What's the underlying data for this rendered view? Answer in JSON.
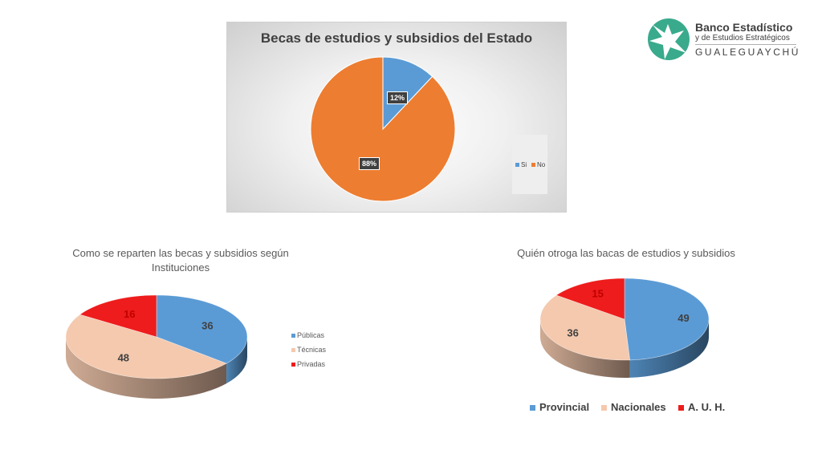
{
  "chart_data": [
    {
      "type": "pie",
      "title": "Becas de estudios y subsidios del Estado",
      "categories": [
        "Si",
        "No"
      ],
      "values": [
        12,
        88
      ],
      "labels": [
        "12%",
        "88%"
      ],
      "colors": [
        "#5b9bd5",
        "#ed7d31"
      ],
      "legend": "right"
    },
    {
      "type": "pie",
      "title": "Como se reparten las becas y subsidios según Instituciones",
      "categories": [
        "Públicas",
        "Técnicas",
        "Privadas"
      ],
      "values": [
        36,
        48,
        16
      ],
      "labels": [
        "36",
        "48",
        "16"
      ],
      "colors": [
        "#5b9bd5",
        "#f4c9ae",
        "#ee1c1c"
      ],
      "legend": "right"
    },
    {
      "type": "pie",
      "title": "Quién otroga las bacas de estudios y subsidios",
      "categories": [
        "Provincial",
        "Nacionales",
        "A. U. H."
      ],
      "values": [
        49,
        36,
        15
      ],
      "labels": [
        "49",
        "36",
        "15"
      ],
      "colors": [
        "#5b9bd5",
        "#f4c9ae",
        "#ee1c1c"
      ],
      "legend": "bottom"
    }
  ],
  "logo": {
    "line1": "Banco Estadístico",
    "line2": "y de Estudios Estratégicos",
    "line3": "GUALEGUAYCHÚ",
    "color": "#3aaa8c"
  }
}
